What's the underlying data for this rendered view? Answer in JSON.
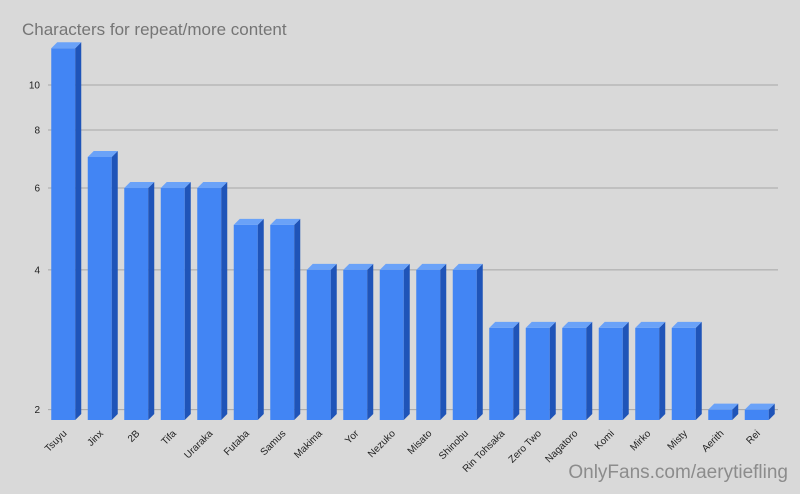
{
  "chart_data": {
    "type": "bar",
    "title": "Characters for repeat/more content",
    "xlabel": "",
    "ylabel": "",
    "y_scale": "log",
    "ylim": [
      1.9,
      12.5
    ],
    "yticks": [
      "2",
      "4",
      "6",
      "8",
      "10"
    ],
    "grid": true,
    "legend": "none",
    "style": "3d-bars",
    "colors": {
      "bar": "#4285f4",
      "bar_side": "#1f54b8",
      "bar_top": "#6aa2f8",
      "background": "#d9d9d9",
      "grid": "#a6a6a6"
    },
    "categories": [
      "Tsuyu",
      "Jinx",
      "2B",
      "Tifa",
      "Uraraka",
      "Futaba",
      "Samus",
      "Makima",
      "Yor",
      "Nezuko",
      "Misato",
      "Shinobu",
      "Rin Tohsaka",
      "Zero Two",
      "Nagatoro",
      "Komi",
      "Mirko",
      "Misty",
      "Aerith",
      "Rei"
    ],
    "values": [
      12,
      7,
      6,
      6,
      6,
      5,
      5,
      4,
      4,
      4,
      4,
      4,
      3,
      3,
      3,
      3,
      3,
      3,
      2,
      2
    ]
  },
  "watermark": "OnlyFans.com/aerytiefling"
}
